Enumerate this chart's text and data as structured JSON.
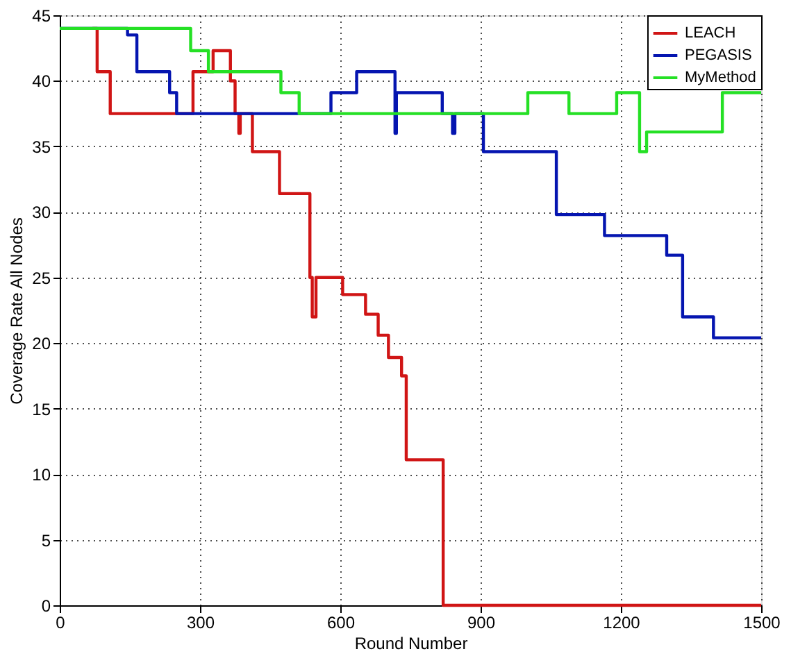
{
  "chart_data": {
    "type": "step",
    "xlabel": "Round Number",
    "ylabel": "Coverage Rate All Nodes",
    "xlim": [
      0,
      1500
    ],
    "ylim": [
      0,
      45
    ],
    "xticks": [
      0,
      300,
      600,
      900,
      1200,
      1500
    ],
    "yticks": [
      0,
      5,
      10,
      15,
      20,
      25,
      30,
      35,
      40,
      45
    ],
    "grid": true,
    "legend": "top right",
    "marker": "none",
    "line_style": "solid",
    "series": [
      {
        "name": "LEACH",
        "color": "#d01515",
        "x": [
          70,
          80,
          98,
          108,
          285,
          310,
          328,
          357,
          365,
          375,
          383,
          386,
          412,
          470,
          535,
          540,
          548,
          556,
          605,
          654,
          681,
          703,
          731,
          741,
          820,
          1500
        ],
        "values": [
          44,
          40.7,
          40.7,
          37.5,
          40.7,
          40.7,
          42.3,
          42.3,
          40,
          37.5,
          36,
          37.5,
          34.6,
          31.4,
          25,
          22,
          25,
          25,
          23.7,
          22.2,
          20.6,
          18.9,
          17.5,
          11.1,
          0,
          0
        ]
      },
      {
        "name": "PEGASIS",
        "color": "#0515b0",
        "x": [
          0,
          145,
          165,
          235,
          250,
          580,
          635,
          717,
          720,
          818,
          840,
          845,
          906,
          1062,
          1165,
          1298,
          1332,
          1398,
          1500
        ],
        "values": [
          44,
          43.5,
          40.7,
          39.1,
          37.5,
          39.1,
          40.7,
          36,
          39.1,
          37.5,
          36,
          37.5,
          34.6,
          29.8,
          28.2,
          26.7,
          22,
          20.4,
          20.4
        ]
      },
      {
        "name": "MyMethod",
        "color": "#25e025",
        "x": [
          0,
          280,
          318,
          473,
          512,
          1001,
          1089,
          1191,
          1240,
          1255,
          1417,
          1500
        ],
        "values": [
          44,
          42.3,
          40.7,
          39.1,
          37.5,
          39.1,
          37.5,
          39.1,
          34.6,
          36.1,
          39.1,
          39.1
        ]
      }
    ]
  }
}
